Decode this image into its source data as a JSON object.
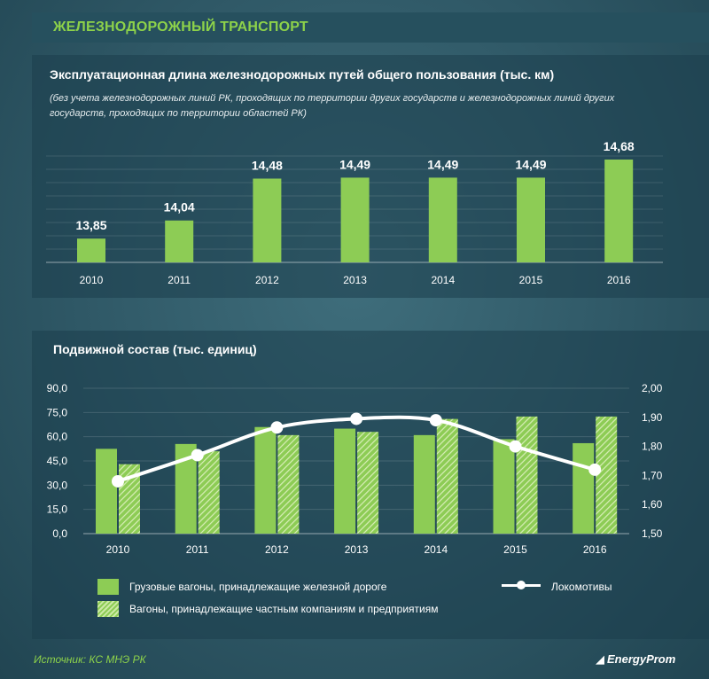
{
  "header": {
    "title": "ЖЕЛЕЗНОДОРОЖНЫЙ ТРАНСПОРТ"
  },
  "colors": {
    "accent_green": "#8dcc55",
    "header_green": "#8dd24a",
    "line": "#ffffff"
  },
  "chart_data": [
    {
      "type": "bar",
      "title": "Эксплуатационная длина железнодорожных путей общего пользования (тыс. км)",
      "subtitle": "(без учета железнодорожных линий РК, проходящих по территории других государств и железнодорожных линий других государств, проходящих по территории областей РК)",
      "categories": [
        "2010",
        "2011",
        "2012",
        "2013",
        "2014",
        "2015",
        "2016"
      ],
      "values": [
        13.85,
        14.04,
        14.48,
        14.49,
        14.49,
        14.49,
        14.68
      ],
      "labels": [
        "13,85",
        "14,04",
        "14,48",
        "14,49",
        "14,49",
        "14,49",
        "14,68"
      ],
      "ylim": [
        13.6,
        14.68
      ]
    },
    {
      "type": "bar+line",
      "title": "Подвижной состав (тыс. единиц)",
      "categories": [
        "2010",
        "2011",
        "2012",
        "2013",
        "2014",
        "2015",
        "2016"
      ],
      "left_axis": {
        "ticks": [
          "0,0",
          "15,0",
          "30,0",
          "45,0",
          "60,0",
          "75,0",
          "90,0"
        ],
        "ylim": [
          0,
          90
        ]
      },
      "right_axis": {
        "ticks": [
          "1,50",
          "1,60",
          "1,70",
          "1,80",
          "1,90",
          "2,00"
        ],
        "ylim": [
          1.5,
          2.0
        ]
      },
      "series": [
        {
          "name": "Грузовые вагоны, принадлежащие железной дороге",
          "kind": "bar-solid",
          "axis": "left",
          "values": [
            52.5,
            55.5,
            66,
            65,
            61,
            58.5,
            56
          ]
        },
        {
          "name": "Вагоны, принадлежащие частным компаниям и предприятиям",
          "kind": "bar-hatch",
          "axis": "left",
          "values": [
            43,
            51,
            61,
            63,
            71,
            72.5,
            72.5
          ]
        },
        {
          "name": "Локомотивы",
          "kind": "line",
          "axis": "right",
          "values": [
            1.68,
            1.77,
            1.865,
            1.895,
            1.89,
            1.8,
            1.72
          ]
        }
      ]
    }
  ],
  "legend": {
    "solid": "Грузовые вагоны, принадлежащие железной дороге",
    "hatch": "Вагоны, принадлежащие частным компаниям и предприятиям",
    "line": "Локомотивы"
  },
  "footer": {
    "source": "Источник: КС МНЭ РК",
    "logo": "EnergyProm"
  }
}
